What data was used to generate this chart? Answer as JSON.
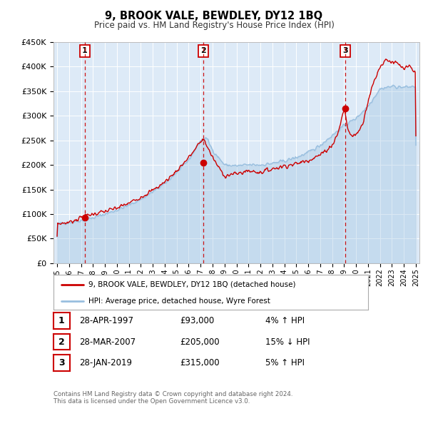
{
  "title": "9, BROOK VALE, BEWDLEY, DY12 1BQ",
  "subtitle": "Price paid vs. HM Land Registry's House Price Index (HPI)",
  "ylim": [
    0,
    450000
  ],
  "yticks": [
    0,
    50000,
    100000,
    150000,
    200000,
    250000,
    300000,
    350000,
    400000,
    450000
  ],
  "ytick_labels": [
    "£0",
    "£50K",
    "£100K",
    "£150K",
    "£200K",
    "£250K",
    "£300K",
    "£350K",
    "£400K",
    "£450K"
  ],
  "xlim_start": 1994.7,
  "xlim_end": 2025.3,
  "xticks": [
    1995,
    1996,
    1997,
    1998,
    1999,
    2000,
    2001,
    2002,
    2003,
    2004,
    2005,
    2006,
    2007,
    2008,
    2009,
    2010,
    2011,
    2012,
    2013,
    2014,
    2015,
    2016,
    2017,
    2018,
    2019,
    2020,
    2021,
    2022,
    2023,
    2024,
    2025
  ],
  "background_color": "#ffffff",
  "plot_bg_color": "#ddeaf7",
  "grid_color": "#ffffff",
  "sale_color": "#cc0000",
  "hpi_color": "#99bfdf",
  "transactions": [
    {
      "num": "1",
      "date": 1997.32,
      "price": 93000
    },
    {
      "num": "2",
      "date": 2007.24,
      "price": 205000
    },
    {
      "num": "3",
      "date": 2019.08,
      "price": 315000
    }
  ],
  "legend_label_sale": "9, BROOK VALE, BEWDLEY, DY12 1BQ (detached house)",
  "legend_label_hpi": "HPI: Average price, detached house, Wyre Forest",
  "table_rows": [
    {
      "num": "1",
      "date": "28-APR-1997",
      "price": "£93,000",
      "pct": "4% ↑ HPI"
    },
    {
      "num": "2",
      "date": "28-MAR-2007",
      "price": "£205,000",
      "pct": "15% ↓ HPI"
    },
    {
      "num": "3",
      "date": "28-JAN-2019",
      "price": "£315,000",
      "pct": "5% ↑ HPI"
    }
  ],
  "footer": "Contains HM Land Registry data © Crown copyright and database right 2024.\nThis data is licensed under the Open Government Licence v3.0."
}
